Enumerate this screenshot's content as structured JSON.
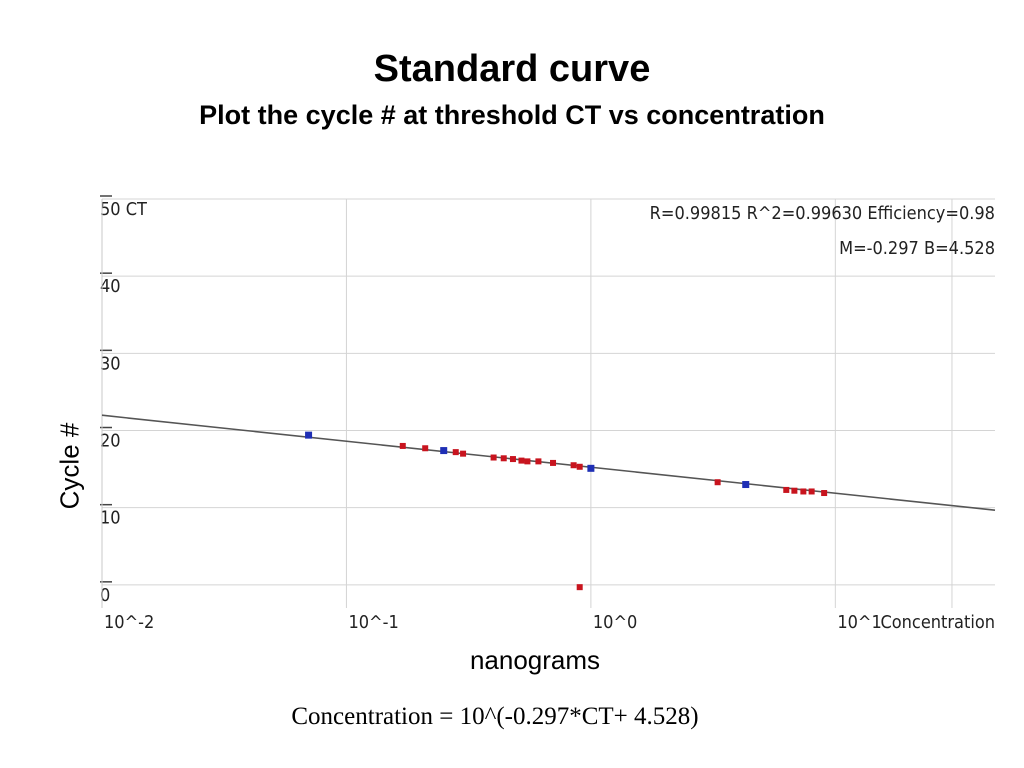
{
  "header": {
    "title": "Standard curve",
    "subtitle": "Plot the cycle # at threshold CT vs concentration"
  },
  "labels": {
    "ylabel": "Cycle #",
    "xlabel": "nanograms",
    "formula": "Concentration = 10^(-0.297*CT+ 4.528)"
  },
  "chart_data": {
    "type": "scatter",
    "y_axis_title": "CT",
    "x_axis_title": "Concentration",
    "x_scale": "log",
    "xlim": [
      0.01,
      45
    ],
    "ylim": [
      -3,
      50
    ],
    "y_ticks": [
      "50",
      "40",
      "30",
      "20",
      "10",
      "0"
    ],
    "x_ticks": [
      "10^-2",
      "10^-1",
      "10^0",
      "10^1"
    ],
    "stats_line1": "R=0.99815  R^2=0.99630  Efficiency=0.98",
    "stats_line2": "M=-0.297  B=4.528",
    "grid": true,
    "fit": {
      "slope": -0.297,
      "intercept": 4.528
    },
    "colors": {
      "standard": "#1f2fb5",
      "unknown": "#c8141e",
      "line": "#555555",
      "grid": "#d4d4d4"
    },
    "series": [
      {
        "role": "standard",
        "points": [
          {
            "x": 0.07,
            "y": 19.4
          },
          {
            "x": 0.25,
            "y": 17.4
          },
          {
            "x": 1.0,
            "y": 15.1
          },
          {
            "x": 4.3,
            "y": 13.0
          }
        ]
      },
      {
        "role": "unknown",
        "points": [
          {
            "x": 0.17,
            "y": 18.0
          },
          {
            "x": 0.21,
            "y": 17.7
          },
          {
            "x": 0.28,
            "y": 17.2
          },
          {
            "x": 0.3,
            "y": 17.0
          },
          {
            "x": 0.4,
            "y": 16.5
          },
          {
            "x": 0.44,
            "y": 16.4
          },
          {
            "x": 0.48,
            "y": 16.3
          },
          {
            "x": 0.52,
            "y": 16.1
          },
          {
            "x": 0.55,
            "y": 16.0
          },
          {
            "x": 0.61,
            "y": 16.0
          },
          {
            "x": 0.7,
            "y": 15.8
          },
          {
            "x": 0.85,
            "y": 15.5
          },
          {
            "x": 0.9,
            "y": 15.3
          },
          {
            "x": 3.3,
            "y": 13.3
          },
          {
            "x": 6.3,
            "y": 12.3
          },
          {
            "x": 6.8,
            "y": 12.2
          },
          {
            "x": 7.4,
            "y": 12.1
          },
          {
            "x": 8.0,
            "y": 12.1
          },
          {
            "x": 9.0,
            "y": 11.9
          },
          {
            "x": 0.9,
            "y": -0.3
          }
        ]
      }
    ]
  }
}
